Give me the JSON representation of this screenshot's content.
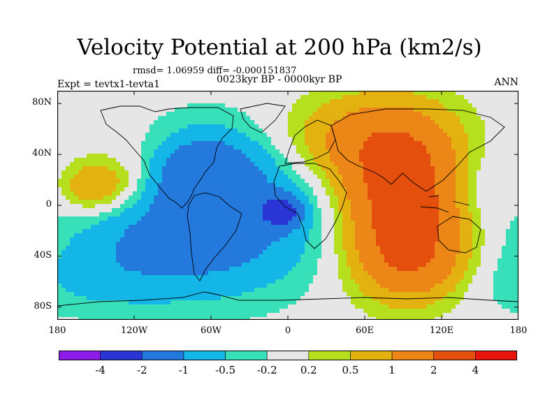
{
  "header": {
    "title": "Velocity Potential at 200 hPa (km2/s)",
    "stats": "rmsd= 1.06959 diff= -0.000151837",
    "period": "0023kyr BP - 0000kyr BP",
    "experiment": "Expt = tevtx1-tevta1",
    "season": "ANN"
  },
  "axes": {
    "lat_labels": [
      "80N",
      "40N",
      "0",
      "40S",
      "80S"
    ],
    "lon_labels": [
      "180",
      "120W",
      "60W",
      "0",
      "60E",
      "120E",
      "180"
    ]
  },
  "colorbar": {
    "labels": [
      "-4",
      "-2",
      "-1",
      "-0.5",
      "-0.2",
      "0.2",
      "0.5",
      "1",
      "2",
      "4"
    ],
    "colors": [
      "#8c1ce8",
      "#2a35d6",
      "#2479dd",
      "#13b6e6",
      "#38e0b9",
      "#e6e6e6",
      "#b6e01e",
      "#e4b210",
      "#ec8616",
      "#e44f0e",
      "#e8140e"
    ]
  },
  "field": {
    "anomalies": [
      {
        "lon": -150,
        "lat": 14,
        "amp": 1.1,
        "sx": 22,
        "sy": 14
      },
      {
        "lon": -115,
        "lat": 30,
        "amp": 0.5,
        "sx": 30,
        "sy": 22
      },
      {
        "lon": -55,
        "lat": -5,
        "amp": -1.6,
        "sx": 55,
        "sy": 42
      },
      {
        "lon": -70,
        "lat": 30,
        "amp": -0.9,
        "sx": 28,
        "sy": 18
      },
      {
        "lon": -125,
        "lat": -40,
        "amp": -0.5,
        "sx": 45,
        "sy": 28
      },
      {
        "lon": -5,
        "lat": -5,
        "amp": -2.2,
        "sx": 10,
        "sy": 8
      },
      {
        "lon": 90,
        "lat": 0,
        "amp": 2.8,
        "sx": 30,
        "sy": 40
      },
      {
        "lon": 60,
        "lat": 50,
        "amp": 1.3,
        "sx": 45,
        "sy": 25
      },
      {
        "lon": 100,
        "lat": -45,
        "amp": 0.9,
        "sx": 30,
        "sy": 20
      },
      {
        "lon": 160,
        "lat": 15,
        "amp": -0.35,
        "sx": 20,
        "sy": 18
      },
      {
        "lon": -170,
        "lat": -60,
        "amp": -0.3,
        "sx": 40,
        "sy": 20
      }
    ]
  }
}
